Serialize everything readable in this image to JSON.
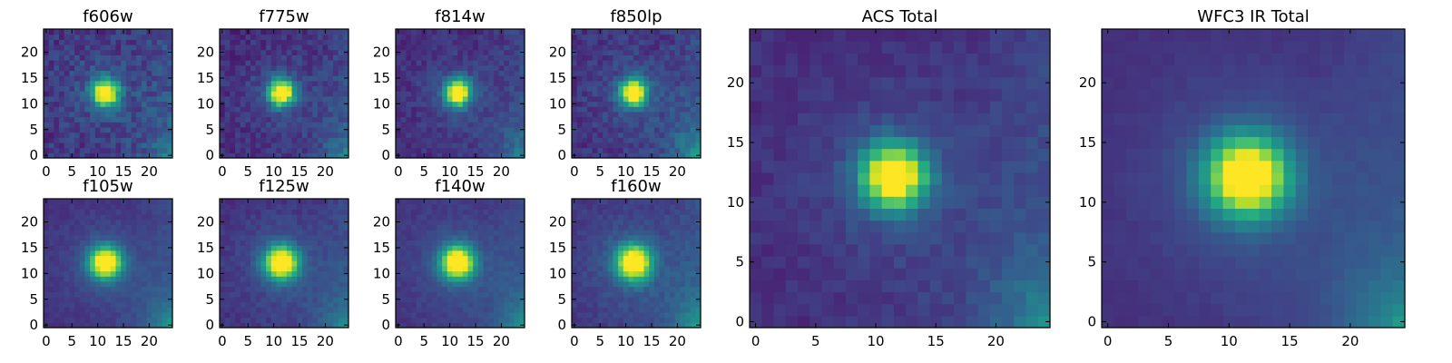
{
  "chart_data": [
    {
      "type": "heatmap",
      "title": "f606w",
      "x_ticks": [
        0,
        5,
        10,
        15,
        20
      ],
      "y_ticks": [
        0,
        5,
        10,
        15,
        20
      ],
      "xlim": [
        -0.5,
        24.5
      ],
      "ylim": [
        -0.5,
        24.5
      ],
      "grid_size": 25,
      "source": {
        "center": [
          11.5,
          12.2
        ],
        "sigma": 1.7,
        "peak": 1.0,
        "noise": 0.09,
        "background": 0.16,
        "corner_boost": 0.22
      }
    },
    {
      "type": "heatmap",
      "title": "f775w",
      "x_ticks": [
        0,
        5,
        10,
        15,
        20
      ],
      "y_ticks": [
        0,
        5,
        10,
        15,
        20
      ],
      "xlim": [
        -0.5,
        24.5
      ],
      "ylim": [
        -0.5,
        24.5
      ],
      "grid_size": 25,
      "source": {
        "center": [
          11.5,
          12.2
        ],
        "sigma": 1.7,
        "peak": 1.0,
        "noise": 0.07,
        "background": 0.13,
        "corner_boost": 0.25
      }
    },
    {
      "type": "heatmap",
      "title": "f814w",
      "x_ticks": [
        0,
        5,
        10,
        15,
        20
      ],
      "y_ticks": [
        0,
        5,
        10,
        15,
        20
      ],
      "xlim": [
        -0.5,
        24.5
      ],
      "ylim": [
        -0.5,
        24.5
      ],
      "grid_size": 25,
      "source": {
        "center": [
          11.5,
          12.2
        ],
        "sigma": 1.7,
        "peak": 1.0,
        "noise": 0.06,
        "background": 0.13,
        "corner_boost": 0.25
      }
    },
    {
      "type": "heatmap",
      "title": "f850lp",
      "x_ticks": [
        0,
        5,
        10,
        15,
        20
      ],
      "y_ticks": [
        0,
        5,
        10,
        15,
        20
      ],
      "xlim": [
        -0.5,
        24.5
      ],
      "ylim": [
        -0.5,
        24.5
      ],
      "grid_size": 25,
      "source": {
        "center": [
          11.5,
          12.2
        ],
        "sigma": 1.7,
        "peak": 1.0,
        "noise": 0.07,
        "background": 0.15,
        "corner_boost": 0.35
      }
    },
    {
      "type": "heatmap",
      "title": "f105w",
      "x_ticks": [
        0,
        5,
        10,
        15,
        20
      ],
      "y_ticks": [
        0,
        5,
        10,
        15,
        20
      ],
      "xlim": [
        -0.5,
        24.5
      ],
      "ylim": [
        -0.5,
        24.5
      ],
      "grid_size": 25,
      "source": {
        "center": [
          11.5,
          12.2
        ],
        "sigma": 2.1,
        "peak": 1.0,
        "noise": 0.03,
        "background": 0.14,
        "corner_boost": 0.32
      }
    },
    {
      "type": "heatmap",
      "title": "f125w",
      "x_ticks": [
        0,
        5,
        10,
        15,
        20
      ],
      "y_ticks": [
        0,
        5,
        10,
        15,
        20
      ],
      "xlim": [
        -0.5,
        24.5
      ],
      "ylim": [
        -0.5,
        24.5
      ],
      "grid_size": 25,
      "source": {
        "center": [
          11.5,
          12.2
        ],
        "sigma": 2.2,
        "peak": 1.0,
        "noise": 0.04,
        "background": 0.14,
        "corner_boost": 0.3
      }
    },
    {
      "type": "heatmap",
      "title": "f140w",
      "x_ticks": [
        0,
        5,
        10,
        15,
        20
      ],
      "y_ticks": [
        0,
        5,
        10,
        15,
        20
      ],
      "xlim": [
        -0.5,
        24.5
      ],
      "ylim": [
        -0.5,
        24.5
      ],
      "grid_size": 25,
      "source": {
        "center": [
          11.5,
          12.2
        ],
        "sigma": 2.2,
        "peak": 1.0,
        "noise": 0.03,
        "background": 0.15,
        "corner_boost": 0.3
      }
    },
    {
      "type": "heatmap",
      "title": "f160w",
      "x_ticks": [
        0,
        5,
        10,
        15,
        20
      ],
      "y_ticks": [
        0,
        5,
        10,
        15,
        20
      ],
      "xlim": [
        -0.5,
        24.5
      ],
      "ylim": [
        -0.5,
        24.5
      ],
      "grid_size": 25,
      "source": {
        "center": [
          11.5,
          12.2
        ],
        "sigma": 2.3,
        "peak": 1.0,
        "noise": 0.04,
        "background": 0.16,
        "corner_boost": 0.35
      }
    },
    {
      "type": "heatmap",
      "title": "ACS Total",
      "x_ticks": [
        0,
        5,
        10,
        15,
        20
      ],
      "y_ticks": [
        0,
        5,
        10,
        15,
        20
      ],
      "xlim": [
        -0.5,
        24.5
      ],
      "ylim": [
        -0.5,
        24.5
      ],
      "grid_size": 25,
      "source": {
        "center": [
          11.5,
          12.2
        ],
        "sigma": 1.8,
        "peak": 1.0,
        "noise": 0.04,
        "background": 0.13,
        "corner_boost": 0.3
      }
    },
    {
      "type": "heatmap",
      "title": "WFC3 IR Total",
      "x_ticks": [
        0,
        5,
        10,
        15,
        20
      ],
      "y_ticks": [
        0,
        5,
        10,
        15,
        20
      ],
      "xlim": [
        -0.5,
        24.5
      ],
      "ylim": [
        -0.5,
        24.5
      ],
      "grid_size": 25,
      "source": {
        "center": [
          11.5,
          12.2
        ],
        "sigma": 2.3,
        "peak": 1.0,
        "noise": 0.015,
        "background": 0.13,
        "corner_boost": 0.32
      }
    }
  ],
  "colormap": "viridis"
}
